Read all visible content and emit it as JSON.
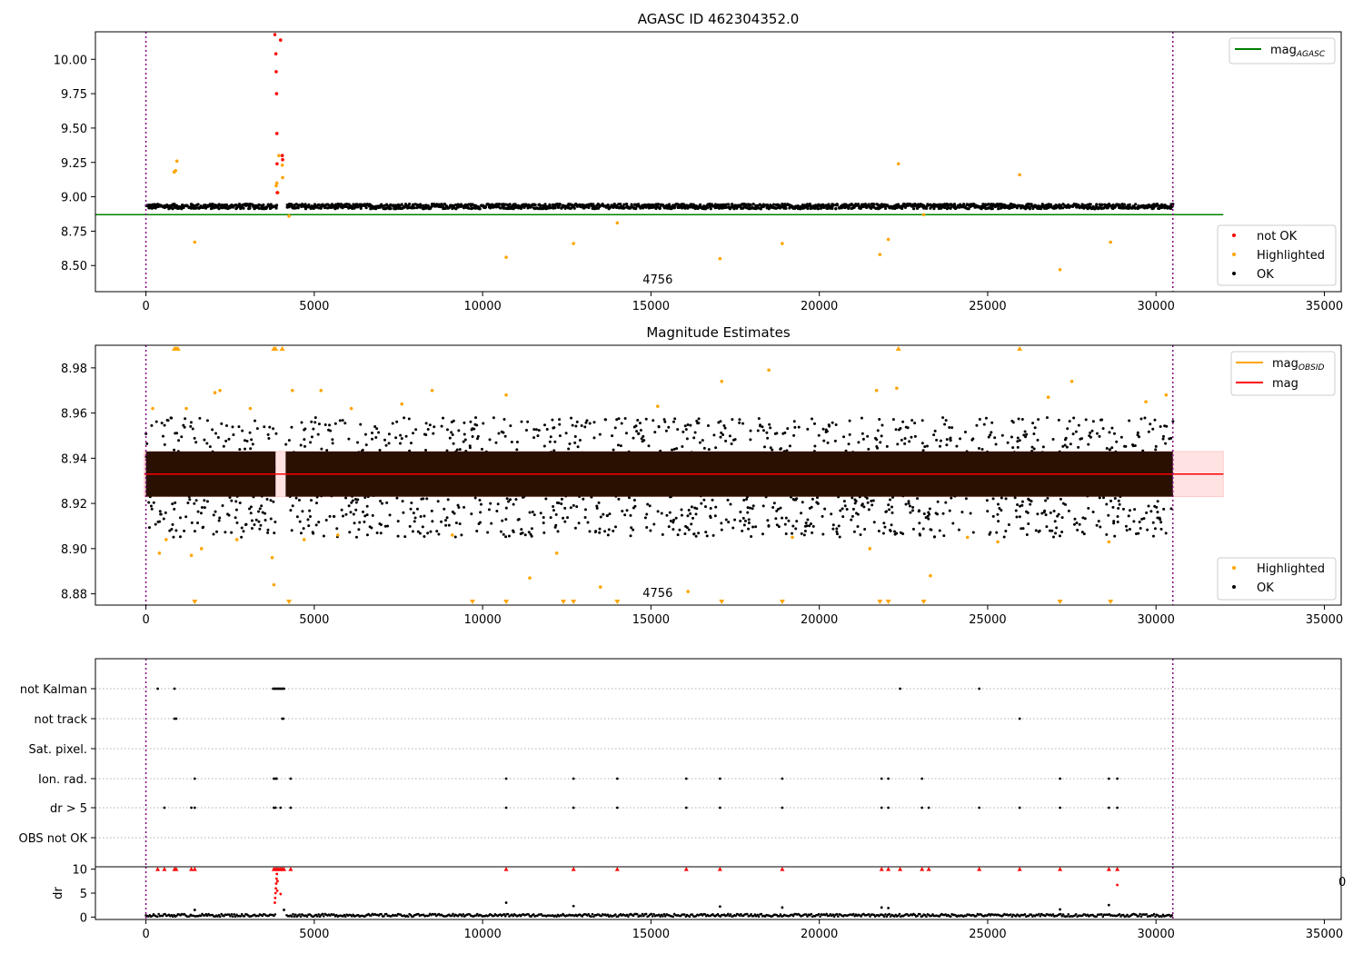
{
  "chart_data": [
    {
      "type": "scatter",
      "title": "AGASC ID 462304352.0",
      "xlim": [
        -1500,
        35500
      ],
      "ylim": [
        8.31,
        10.2
      ],
      "xticks": [
        0,
        5000,
        10000,
        15000,
        20000,
        25000,
        30000,
        35000
      ],
      "yticks": [
        8.5,
        8.75,
        9.0,
        9.25,
        9.5,
        9.75,
        10.0
      ],
      "obsid_label": "4756",
      "obsid_label_x": 15200,
      "vlines": [
        0,
        30500
      ],
      "mag_agasc": 8.87,
      "mag_agasc_range": [
        -1500,
        32000
      ],
      "ok_band": {
        "x": [
          0,
          30500
        ],
        "center": 8.93,
        "gap_x": [
          3850,
          4150
        ]
      },
      "highlighted": [
        [
          840,
          9.18
        ],
        [
          880,
          9.19
        ],
        [
          920,
          9.26
        ],
        [
          1450,
          8.67
        ],
        [
          3870,
          9.08
        ],
        [
          3890,
          9.1
        ],
        [
          3920,
          9.03
        ],
        [
          3950,
          9.3
        ],
        [
          4050,
          9.23
        ],
        [
          4060,
          9.14
        ],
        [
          4250,
          8.86
        ],
        [
          10700,
          8.56
        ],
        [
          12700,
          8.66
        ],
        [
          14000,
          8.81
        ],
        [
          17050,
          8.55
        ],
        [
          18900,
          8.66
        ],
        [
          21800,
          8.58
        ],
        [
          22050,
          8.69
        ],
        [
          22350,
          9.24
        ],
        [
          23100,
          8.87
        ],
        [
          25950,
          9.16
        ],
        [
          27150,
          8.47
        ],
        [
          28650,
          8.67
        ]
      ],
      "not_ok": [
        [
          3830,
          10.18
        ],
        [
          3860,
          10.04
        ],
        [
          3870,
          9.91
        ],
        [
          3880,
          9.75
        ],
        [
          3890,
          9.46
        ],
        [
          3895,
          9.24
        ],
        [
          3900,
          9.03
        ],
        [
          4000,
          10.14
        ],
        [
          4050,
          9.3
        ],
        [
          4060,
          9.27
        ]
      ],
      "legend_upper": [
        {
          "name": "mag",
          "sub": "AGASC",
          "color": "#008000"
        }
      ],
      "legend_lower": [
        {
          "name": "not OK",
          "color": "#ff0000"
        },
        {
          "name": "Highlighted",
          "color": "#ffa500"
        },
        {
          "name": "OK",
          "color": "#000000"
        }
      ]
    },
    {
      "type": "scatter",
      "title": "Magnitude Estimates",
      "xlim": [
        -1500,
        35500
      ],
      "ylim": [
        8.875,
        8.99
      ],
      "xticks": [
        0,
        5000,
        10000,
        15000,
        20000,
        25000,
        30000,
        35000
      ],
      "yticks": [
        8.88,
        8.9,
        8.92,
        8.94,
        8.96,
        8.98
      ],
      "obsid_label": "4756",
      "obsid_label_x": 15200,
      "vlines": [
        0,
        30500
      ],
      "mag": 8.933,
      "mag_band": [
        8.923,
        8.943
      ],
      "mag_range": [
        -50,
        32000
      ],
      "ok_core": [
        8.923,
        8.943
      ],
      "ok_spread": [
        8.905,
        8.958
      ],
      "gap_x": [
        3850,
        4150
      ],
      "highlighted": [
        [
          200,
          8.962
        ],
        [
          400,
          8.898
        ],
        [
          600,
          8.904
        ],
        [
          1200,
          8.962
        ],
        [
          1350,
          8.897
        ],
        [
          1650,
          8.9
        ],
        [
          2050,
          8.969
        ],
        [
          2200,
          8.97
        ],
        [
          2700,
          8.904
        ],
        [
          3100,
          8.962
        ],
        [
          3750,
          8.896
        ],
        [
          3800,
          8.884
        ],
        [
          4350,
          8.97
        ],
        [
          4700,
          8.904
        ],
        [
          5200,
          8.97
        ],
        [
          5700,
          8.906
        ],
        [
          6100,
          8.962
        ],
        [
          7600,
          8.964
        ],
        [
          8500,
          8.97
        ],
        [
          9100,
          8.906
        ],
        [
          10700,
          8.968
        ],
        [
          11400,
          8.887
        ],
        [
          12200,
          8.898
        ],
        [
          13500,
          8.883
        ],
        [
          15200,
          8.963
        ],
        [
          16100,
          8.881
        ],
        [
          17100,
          8.974
        ],
        [
          18500,
          8.979
        ],
        [
          19200,
          8.905
        ],
        [
          21500,
          8.9
        ],
        [
          21700,
          8.97
        ],
        [
          22300,
          8.971
        ],
        [
          23300,
          8.888
        ],
        [
          24400,
          8.905
        ],
        [
          25300,
          8.903
        ],
        [
          26800,
          8.967
        ],
        [
          27500,
          8.974
        ],
        [
          28600,
          8.903
        ],
        [
          29700,
          8.965
        ],
        [
          30300,
          8.968
        ]
      ],
      "top_markers": [
        850,
        900,
        950,
        3800,
        3850,
        4050,
        22350,
        25950
      ],
      "bottom_markers": [
        1450,
        4250,
        9700,
        10700,
        12400,
        12700,
        14000,
        17100,
        18900,
        21800,
        22050,
        23100,
        27150,
        28650
      ],
      "legend_upper": [
        {
          "name": "mag",
          "sub": "OBSID",
          "color": "#ffa500"
        },
        {
          "name": "mag",
          "sub": "",
          "color": "#ff0000"
        }
      ],
      "legend_lower": [
        {
          "name": "Highlighted",
          "color": "#ffa500"
        },
        {
          "name": "OK",
          "color": "#000000"
        }
      ]
    },
    {
      "type": "scatter",
      "xlim": [
        -1500,
        35500
      ],
      "categories": [
        "not Kalman",
        "not track",
        "Sat. pixel.",
        "Ion. rad.",
        "dr > 5",
        "OBS not OK"
      ],
      "vlines": [
        0,
        30500
      ],
      "flags": {
        "not Kalman": [
          350,
          850,
          3780,
          3820,
          3860,
          3900,
          3940,
          3980,
          4020,
          4060,
          4100,
          22400,
          24750
        ],
        "not track": [
          850,
          900,
          4050,
          4080,
          25950
        ],
        "Sat. pixel.": [],
        "Ion. rad.": [
          1450,
          3800,
          3850,
          3880,
          4300,
          10700,
          12700,
          14000,
          16050,
          17050,
          18900,
          21850,
          22050,
          23050,
          27150,
          28600,
          28850
        ],
        "dr > 5": [
          550,
          1350,
          1450,
          3800,
          3850,
          4000,
          4300,
          10700,
          12700,
          14000,
          16050,
          17050,
          18900,
          21850,
          22050,
          23050,
          23250,
          24750,
          25950,
          27150,
          28600,
          28850
        ],
        "OBS not OK": []
      }
    },
    {
      "type": "scatter",
      "ylabel": "dr",
      "xlim": [
        -1500,
        35500
      ],
      "ylim": [
        -0.5,
        10.5
      ],
      "yticks": [
        0,
        5,
        10
      ],
      "xticks": [
        0,
        5000,
        10000,
        15000,
        20000,
        25000,
        30000,
        35000
      ],
      "vlines": [
        0,
        30500
      ],
      "dr_flagged": [
        350,
        550,
        850,
        900,
        1350,
        1450,
        3800,
        3850,
        3900,
        3950,
        4000,
        4050,
        4100,
        4300,
        10700,
        12700,
        14000,
        16050,
        17050,
        18900,
        21850,
        22050,
        22400,
        23050,
        23250,
        24750,
        25950,
        27150,
        28600,
        28850
      ],
      "dr_points": [
        [
          10700,
          3
        ],
        [
          12700,
          2.3
        ],
        [
          17050,
          2.2
        ],
        [
          18900,
          2
        ],
        [
          21850,
          2
        ],
        [
          22050,
          1.9
        ],
        [
          27150,
          1.6
        ],
        [
          28600,
          2.5
        ],
        [
          28850,
          6.7
        ],
        [
          1450,
          1.5
        ],
        [
          4100,
          1.5
        ]
      ],
      "red_rise": [
        [
          3830,
          3
        ],
        [
          3840,
          4
        ],
        [
          3850,
          5
        ],
        [
          3860,
          6
        ],
        [
          3870,
          7
        ],
        [
          3880,
          8
        ],
        [
          3890,
          9
        ],
        [
          3900,
          5.5
        ],
        [
          3910,
          7.5
        ],
        [
          4000,
          4.8
        ]
      ]
    }
  ]
}
